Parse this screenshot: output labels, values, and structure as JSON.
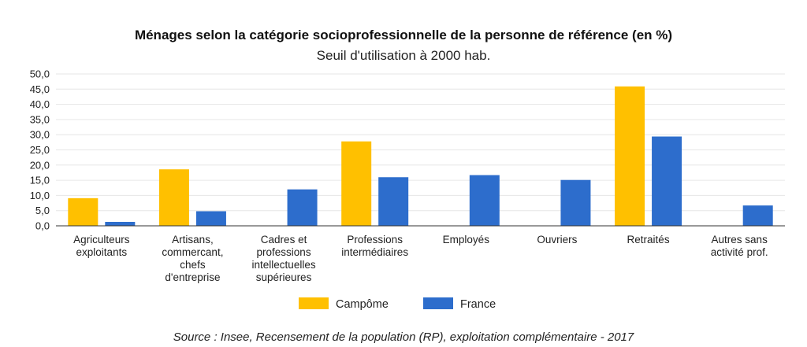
{
  "chart_data": {
    "type": "bar",
    "title": "Ménages selon la catégorie socioprofessionnelle de la personne de référence (en %)",
    "subtitle": "Seuil d'utilisation à 2000 hab.",
    "categories": [
      [
        "Agriculteurs",
        "exploitants"
      ],
      [
        "Artisans,",
        "commercant,",
        "chefs",
        "d'entreprise"
      ],
      [
        "Cadres et",
        "professions",
        "intellectuelles",
        "supérieures"
      ],
      [
        "Professions",
        "intermédiaires"
      ],
      [
        "Employés"
      ],
      [
        "Ouvriers"
      ],
      [
        "Retraités"
      ],
      [
        "Autres sans",
        "activité prof."
      ]
    ],
    "series": [
      {
        "name": "Campôme",
        "color": "#ffc000",
        "values": [
          9.1,
          18.6,
          0,
          27.8,
          0,
          0,
          45.9,
          0
        ]
      },
      {
        "name": "France",
        "color": "#2d6dcc",
        "values": [
          1.3,
          4.8,
          12.0,
          16.0,
          16.7,
          15.1,
          29.4,
          6.7
        ]
      }
    ],
    "ylim": [
      0,
      50
    ],
    "yticks": [
      "0,0",
      "5,0",
      "10,0",
      "15,0",
      "20,0",
      "25,0",
      "30,0",
      "35,0",
      "40,0",
      "45,0",
      "50,0"
    ],
    "ytick_values": [
      0,
      5,
      10,
      15,
      20,
      25,
      30,
      35,
      40,
      45,
      50
    ],
    "grid": true,
    "legend": "bottom",
    "source": "Source : Insee, Recensement de la population (RP), exploitation complémentaire - 2017"
  }
}
